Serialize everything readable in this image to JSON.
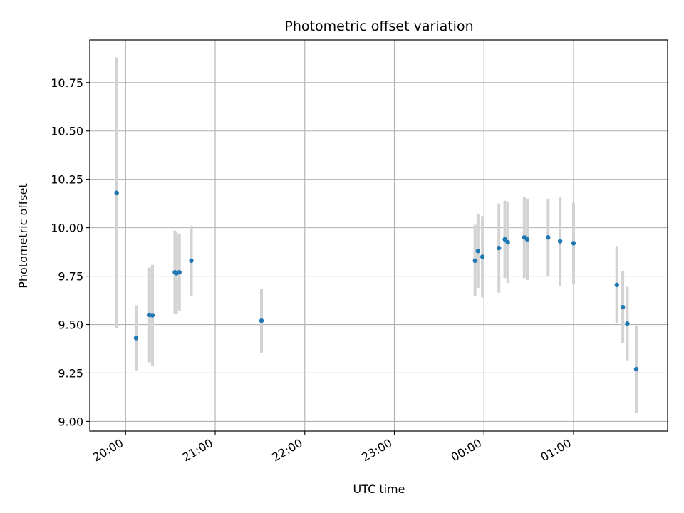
{
  "chart_data": {
    "type": "scatter",
    "title": "Photometric offset variation",
    "xlabel": "UTC time",
    "ylabel": "Photometric offset",
    "x_tick_labels": [
      "20:00",
      "21:00",
      "22:00",
      "23:00",
      "00:00",
      "01:00"
    ],
    "x_tick_hours": [
      20,
      21,
      22,
      23,
      24,
      25
    ],
    "xlim_hours": [
      19.6,
      26.05
    ],
    "y_tick_labels": [
      "9.00",
      "9.25",
      "9.50",
      "9.75",
      "10.00",
      "10.25",
      "10.50",
      "10.75"
    ],
    "y_ticks": [
      9.0,
      9.25,
      9.5,
      9.75,
      10.0,
      10.25,
      10.5,
      10.75
    ],
    "ylim": [
      8.95,
      10.97
    ],
    "grid": true,
    "colors": {
      "points": "#1f77b4",
      "errorbars": "#d3d3d3",
      "grid": "#b0b0b0"
    },
    "series": [
      {
        "points": [
          {
            "time": "19:54",
            "y": 10.18,
            "err": 0.7
          },
          {
            "time": "20:07",
            "y": 9.43,
            "err": 0.17
          },
          {
            "time": "20:16",
            "y": 9.55,
            "err": 0.245
          },
          {
            "time": "20:18",
            "y": 9.548,
            "err": 0.26
          },
          {
            "time": "20:33",
            "y": 9.77,
            "err": 0.215
          },
          {
            "time": "20:34",
            "y": 9.765,
            "err": 0.21
          },
          {
            "time": "20:36",
            "y": 9.77,
            "err": 0.2
          },
          {
            "time": "20:44",
            "y": 9.83,
            "err": 0.18
          },
          {
            "time": "21:31",
            "y": 9.52,
            "err": 0.165
          },
          {
            "time": "23:54",
            "y": 9.83,
            "err": 0.185
          },
          {
            "time": "23:56",
            "y": 9.88,
            "err": 0.19
          },
          {
            "time": "23:59",
            "y": 9.85,
            "err": 0.21
          },
          {
            "time": "00:10",
            "y": 9.895,
            "err": 0.23
          },
          {
            "time": "00:14",
            "y": 9.94,
            "err": 0.2
          },
          {
            "time": "00:16",
            "y": 9.925,
            "err": 0.21
          },
          {
            "time": "00:27",
            "y": 9.95,
            "err": 0.21
          },
          {
            "time": "00:29",
            "y": 9.94,
            "err": 0.21
          },
          {
            "time": "00:43",
            "y": 9.95,
            "err": 0.2
          },
          {
            "time": "00:51",
            "y": 9.93,
            "err": 0.23
          },
          {
            "time": "01:00",
            "y": 9.92,
            "err": 0.21
          },
          {
            "time": "01:29",
            "y": 9.705,
            "err": 0.2
          },
          {
            "time": "01:33",
            "y": 9.59,
            "err": 0.185
          },
          {
            "time": "01:36",
            "y": 9.505,
            "err": 0.19
          },
          {
            "time": "01:42",
            "y": 9.27,
            "err": 0.225
          }
        ]
      }
    ]
  }
}
